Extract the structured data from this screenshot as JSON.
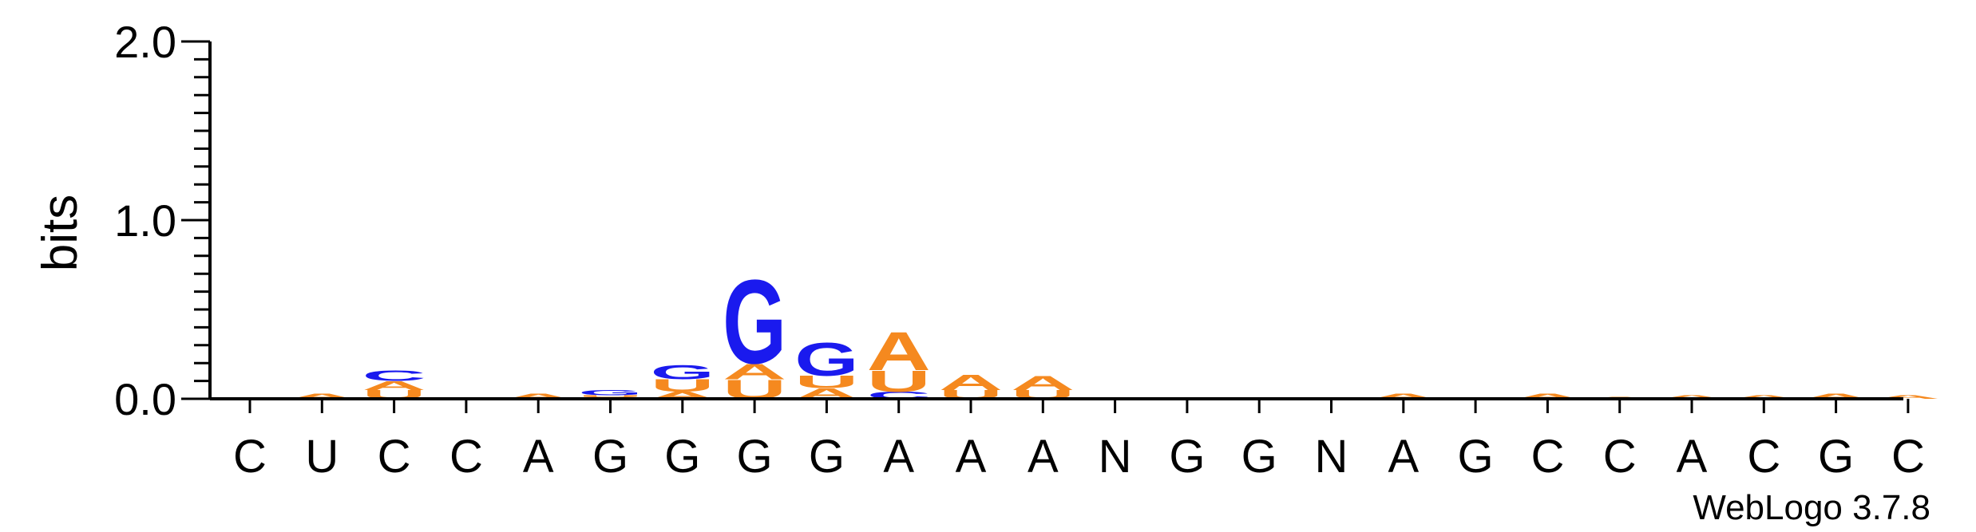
{
  "colors": {
    "A": "#f5891f",
    "U": "#f5891f",
    "G": "#1a1aee",
    "C": "#1a1aee",
    "axis": "#000000"
  },
  "chart_data": {
    "type": "sequence-logo",
    "ylabel": "bits",
    "ylim": [
      0,
      2.0
    ],
    "yticks": [
      "0.0",
      "1.0",
      "2.0"
    ],
    "credit": "WebLogo 3.7.8",
    "positions": [
      {
        "label": "C",
        "stack": []
      },
      {
        "label": "U",
        "stack": [
          {
            "letter": "A",
            "bits": 0.03
          }
        ]
      },
      {
        "label": "C",
        "stack": [
          {
            "letter": "U",
            "bits": 0.05
          },
          {
            "letter": "A",
            "bits": 0.05
          },
          {
            "letter": "C",
            "bits": 0.06
          }
        ]
      },
      {
        "label": "C",
        "stack": []
      },
      {
        "label": "A",
        "stack": [
          {
            "letter": "A",
            "bits": 0.03
          }
        ]
      },
      {
        "label": "G",
        "stack": [
          {
            "letter": "A",
            "bits": 0.01
          },
          {
            "letter": "U",
            "bits": 0.01
          },
          {
            "letter": "G",
            "bits": 0.03
          }
        ]
      },
      {
        "label": "G",
        "stack": [
          {
            "letter": "A",
            "bits": 0.04
          },
          {
            "letter": "U",
            "bits": 0.07
          },
          {
            "letter": "G",
            "bits": 0.08
          }
        ]
      },
      {
        "label": "G",
        "stack": [
          {
            "letter": "U",
            "bits": 0.11
          },
          {
            "letter": "A",
            "bits": 0.09
          },
          {
            "letter": "G",
            "bits": 0.48
          }
        ]
      },
      {
        "label": "G",
        "stack": [
          {
            "letter": "A",
            "bits": 0.06
          },
          {
            "letter": "U",
            "bits": 0.07
          },
          {
            "letter": "G",
            "bits": 0.19
          }
        ]
      },
      {
        "label": "A",
        "stack": [
          {
            "letter": "C",
            "bits": 0.04
          },
          {
            "letter": "U",
            "bits": 0.12
          },
          {
            "letter": "A",
            "bits": 0.22
          }
        ]
      },
      {
        "label": "A",
        "stack": [
          {
            "letter": "U",
            "bits": 0.05
          },
          {
            "letter": "A",
            "bits": 0.09
          }
        ]
      },
      {
        "label": "A",
        "stack": [
          {
            "letter": "U",
            "bits": 0.05
          },
          {
            "letter": "A",
            "bits": 0.08
          }
        ]
      },
      {
        "label": "N",
        "stack": []
      },
      {
        "label": "G",
        "stack": []
      },
      {
        "label": "G",
        "stack": []
      },
      {
        "label": "N",
        "stack": []
      },
      {
        "label": "A",
        "stack": [
          {
            "letter": "A",
            "bits": 0.03
          }
        ]
      },
      {
        "label": "G",
        "stack": []
      },
      {
        "label": "C",
        "stack": [
          {
            "letter": "A",
            "bits": 0.03
          }
        ]
      },
      {
        "label": "C",
        "stack": [
          {
            "letter": "A",
            "bits": 0.01
          }
        ]
      },
      {
        "label": "A",
        "stack": [
          {
            "letter": "A",
            "bits": 0.02
          }
        ]
      },
      {
        "label": "C",
        "stack": [
          {
            "letter": "A",
            "bits": 0.02
          }
        ]
      },
      {
        "label": "G",
        "stack": [
          {
            "letter": "A",
            "bits": 0.03
          }
        ]
      },
      {
        "label": "C",
        "stack": [
          {
            "letter": "A",
            "bits": 0.02
          }
        ]
      }
    ]
  }
}
